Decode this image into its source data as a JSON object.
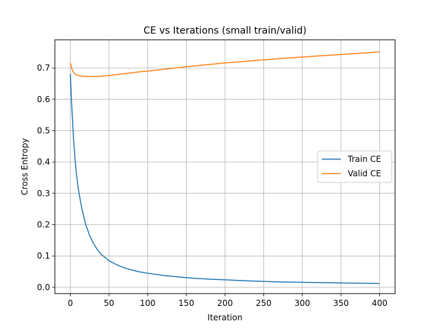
{
  "chart_data": {
    "type": "line",
    "title": "CE vs Iterations (small train/valid)",
    "xlabel": "Iteration",
    "ylabel": "Cross Entropy",
    "xlim": [
      -20,
      420
    ],
    "ylim": [
      -0.02,
      0.79
    ],
    "xticks": [
      0,
      50,
      100,
      150,
      200,
      250,
      300,
      350,
      400
    ],
    "yticks": [
      0.0,
      0.1,
      0.2,
      0.3,
      0.4,
      0.5,
      0.6,
      0.7
    ],
    "xtick_labels": [
      "0",
      "50",
      "100",
      "150",
      "200",
      "250",
      "300",
      "350",
      "400"
    ],
    "ytick_labels": [
      "0.0",
      "0.1",
      "0.2",
      "0.3",
      "0.4",
      "0.5",
      "0.6",
      "0.7"
    ],
    "grid": true,
    "legend_position": "center-right",
    "series": [
      {
        "name": "Train CE",
        "color": "#1f77b4",
        "x": [
          0,
          2,
          4,
          6,
          8,
          10,
          12,
          15,
          20,
          25,
          30,
          35,
          40,
          45,
          50,
          60,
          70,
          80,
          90,
          100,
          120,
          140,
          160,
          180,
          200,
          225,
          250,
          275,
          300,
          325,
          350,
          375,
          399
        ],
        "y": [
          0.68,
          0.57,
          0.48,
          0.41,
          0.36,
          0.32,
          0.29,
          0.25,
          0.2,
          0.165,
          0.14,
          0.12,
          0.105,
          0.095,
          0.085,
          0.072,
          0.062,
          0.055,
          0.049,
          0.045,
          0.038,
          0.033,
          0.029,
          0.026,
          0.024,
          0.021,
          0.019,
          0.017,
          0.016,
          0.015,
          0.014,
          0.013,
          0.012
        ]
      },
      {
        "name": "Valid CE",
        "color": "#ff7f0e",
        "x": [
          0,
          1,
          2,
          3,
          4,
          5,
          6,
          8,
          10,
          12,
          15,
          20,
          25,
          30,
          35,
          40,
          50,
          60,
          70,
          80,
          90,
          100,
          125,
          150,
          175,
          200,
          225,
          250,
          275,
          300,
          325,
          350,
          375,
          399
        ],
        "y": [
          0.715,
          0.705,
          0.697,
          0.691,
          0.687,
          0.684,
          0.681,
          0.678,
          0.676,
          0.675,
          0.674,
          0.673,
          0.673,
          0.673,
          0.673,
          0.674,
          0.676,
          0.679,
          0.682,
          0.685,
          0.688,
          0.69,
          0.697,
          0.704,
          0.71,
          0.716,
          0.721,
          0.726,
          0.731,
          0.735,
          0.739,
          0.743,
          0.747,
          0.751
        ]
      }
    ]
  }
}
